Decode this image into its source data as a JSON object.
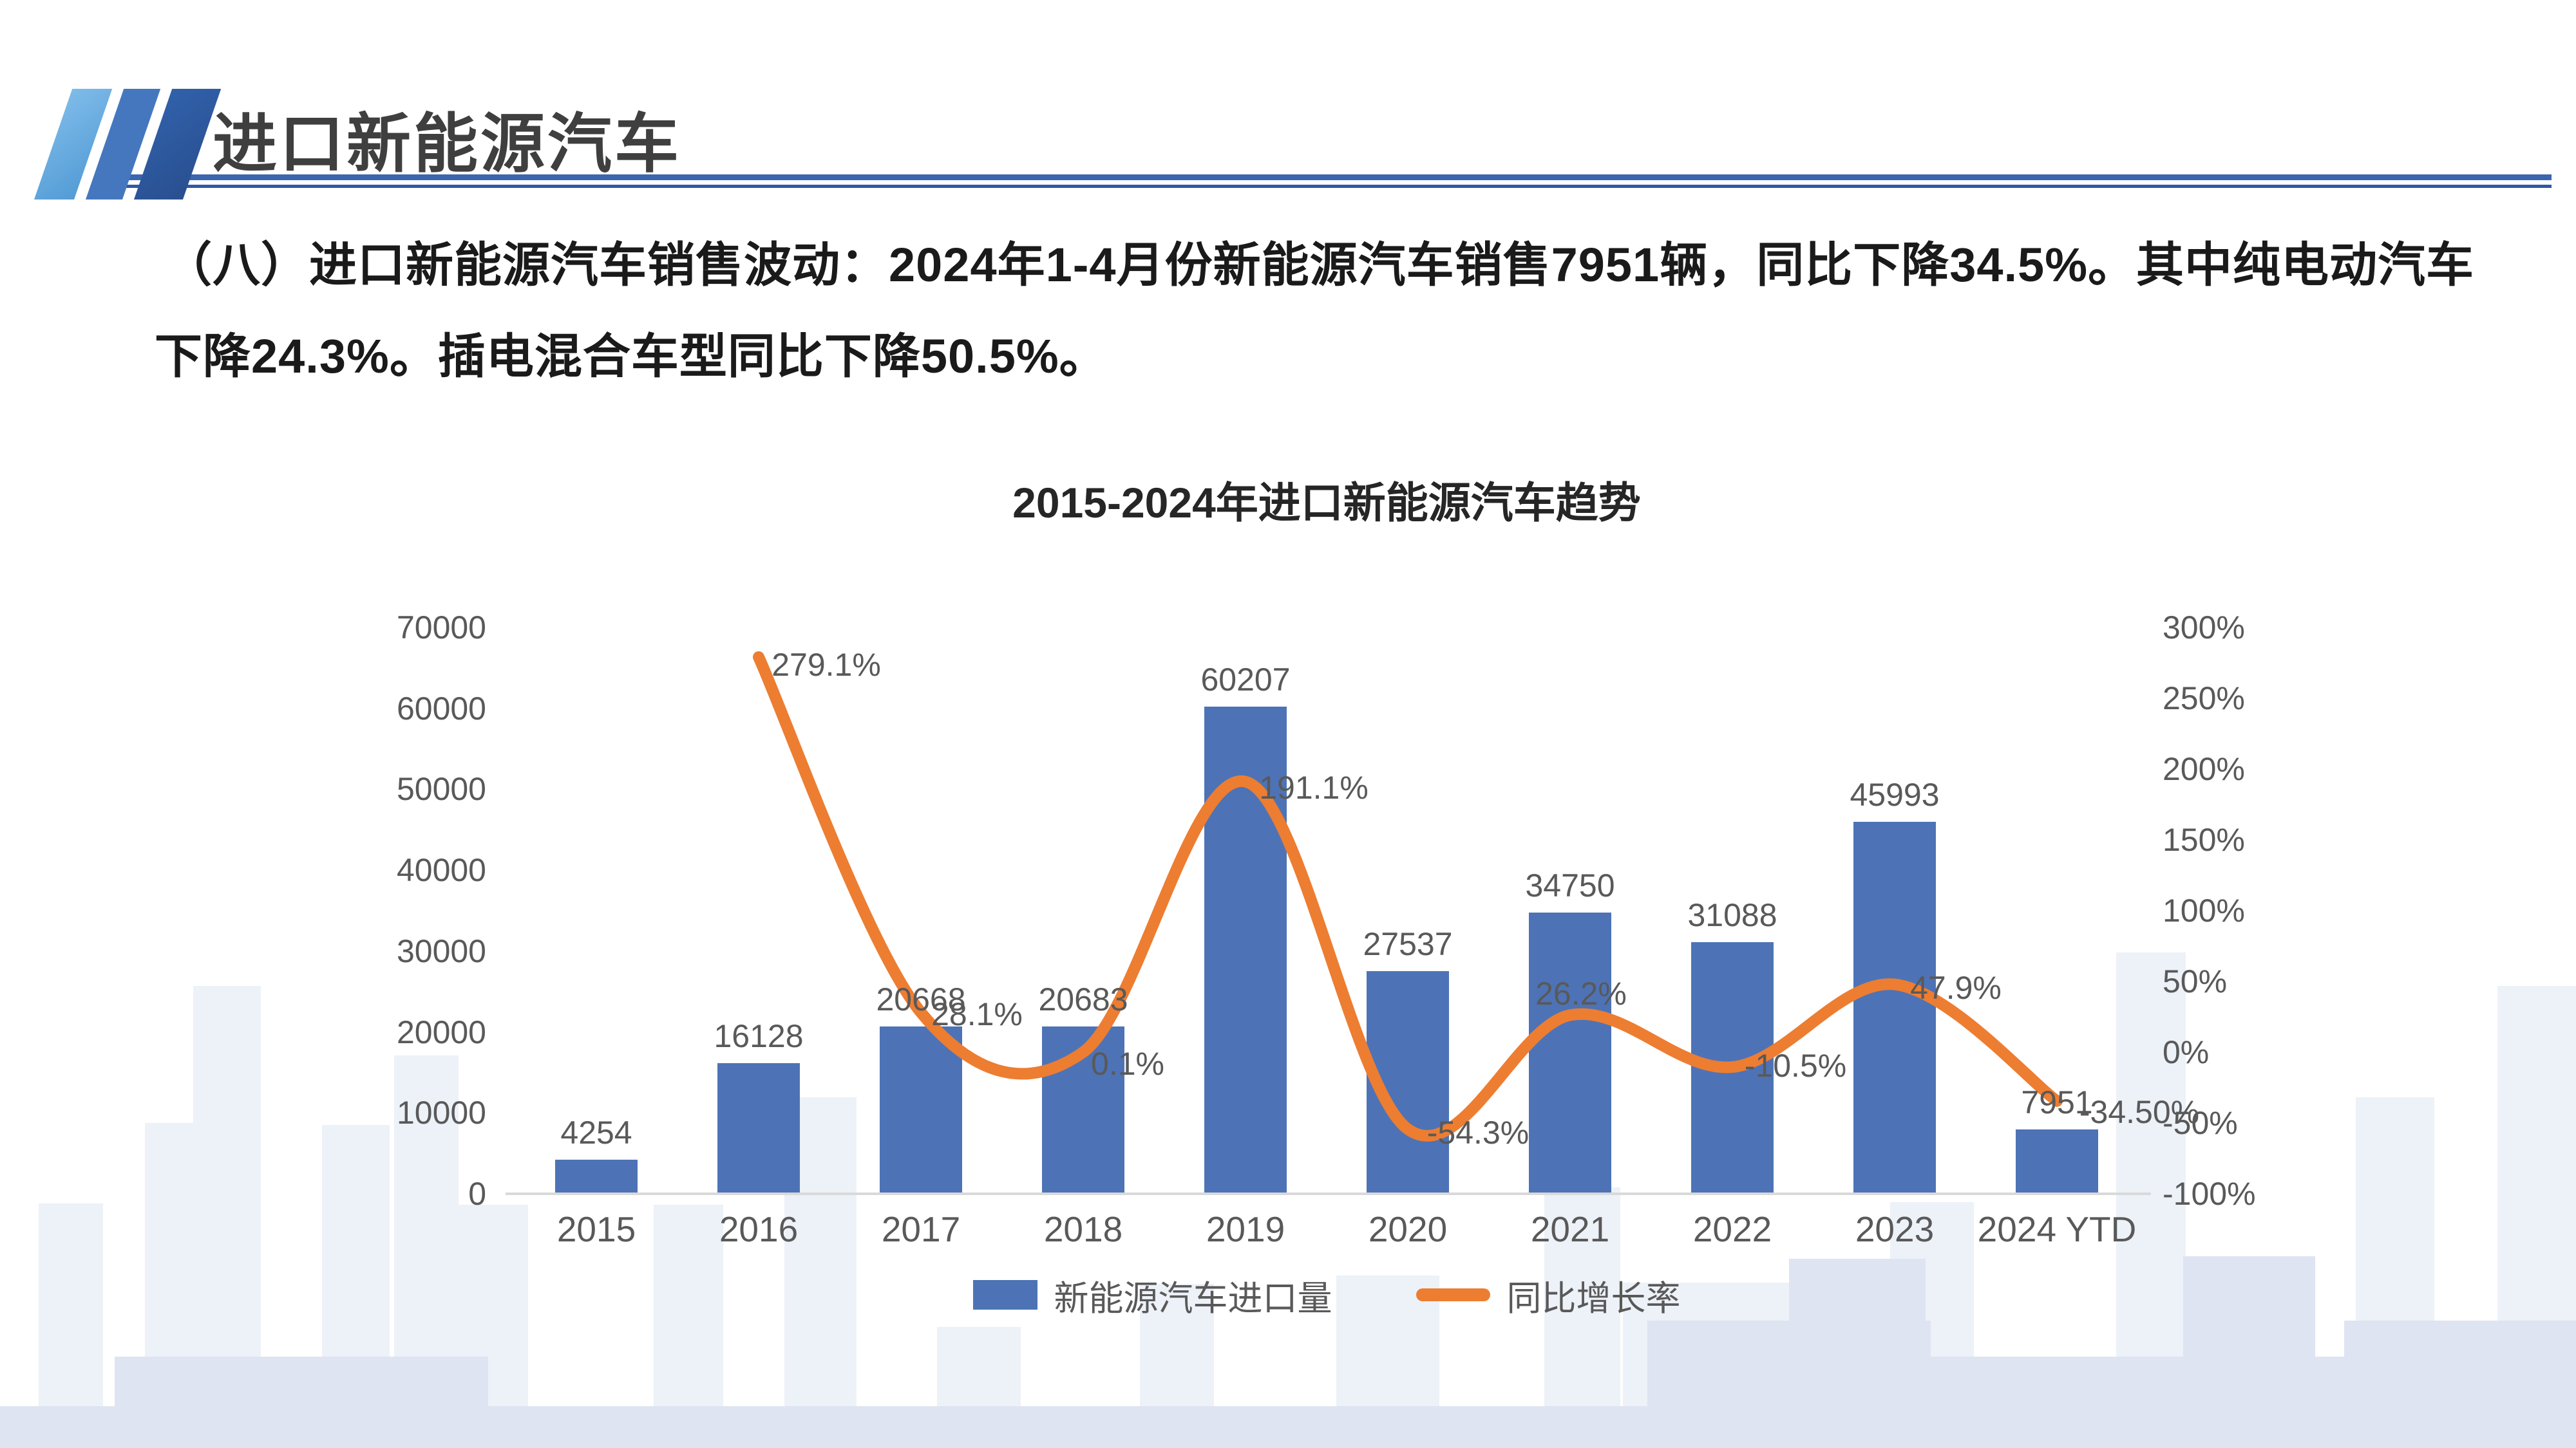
{
  "header": {
    "title": "进口新能源汽车"
  },
  "body": {
    "line1": "（八）进口新能源汽车销售波动：2024年1-4月份新能源汽车销售7951辆，同比下降34.5%。其中纯电动汽车",
    "line2": "下降24.3%。插电混合车型同比下降50.5%。"
  },
  "chart_data": {
    "type": "bar+line combo",
    "title": "2015-2024年进口新能源汽车趋势",
    "categories": [
      "2015",
      "2016",
      "2017",
      "2018",
      "2019",
      "2020",
      "2021",
      "2022",
      "2023",
      "2024 YTD"
    ],
    "series": [
      {
        "name": "新能源汽车进口量",
        "type": "bar",
        "axis": "left",
        "color": "#4d73b6",
        "values": [
          4254,
          16128,
          20668,
          20683,
          60207,
          27537,
          34750,
          31088,
          45993,
          7951
        ],
        "labels": [
          "4254",
          "16128",
          "20668",
          "20683",
          "60207",
          "27537",
          "34750",
          "31088",
          "45993",
          "7951"
        ]
      },
      {
        "name": "同比增长率",
        "type": "line",
        "axis": "right",
        "color": "#ed7d31",
        "values": [
          null,
          279.1,
          28.1,
          0.1,
          191.1,
          -54.3,
          26.2,
          -10.5,
          47.9,
          -34.5
        ],
        "labels": [
          null,
          "279.1%",
          "28.1%",
          "0.1%",
          "191.1%",
          "-54.3%",
          "26.2%",
          "-10.5%",
          "47.9%",
          "-34.50%"
        ]
      }
    ],
    "left_axis": {
      "ticks": [
        "70000",
        "60000",
        "50000",
        "40000",
        "30000",
        "20000",
        "10000",
        "0"
      ],
      "min": 0,
      "max": 70000
    },
    "right_axis": {
      "ticks": [
        "300%",
        "250%",
        "200%",
        "150%",
        "100%",
        "50%",
        "0%",
        "-50%",
        "-100%"
      ],
      "min": -100,
      "max": 300
    },
    "legend_position": "bottom",
    "gridlines": false
  }
}
